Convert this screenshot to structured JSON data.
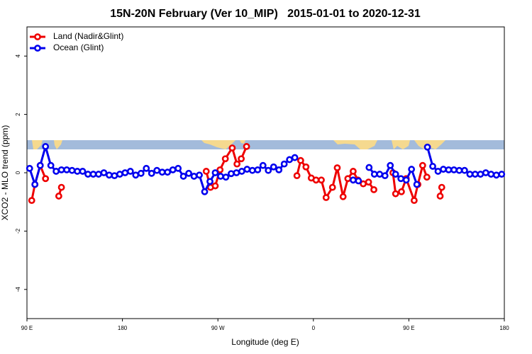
{
  "chart_data": {
    "type": "line",
    "title": "15N-20N February (Ver 10_MIP)   2015-01-01 to 2020-12-31",
    "x_label": "Longitude (deg E)",
    "y_label": "XCO2 - MLO trend (ppm)",
    "xlim": [
      90,
      540
    ],
    "xticks": [
      {
        "value": 90,
        "label": "90 E"
      },
      180,
      {
        "value": 270,
        "label": "90 W"
      },
      {
        "value": 360,
        "label": "0"
      },
      {
        "value": 450,
        "label": "90 E"
      },
      {
        "value": 540,
        "label": "180"
      }
    ],
    "ylim": [
      -5,
      5
    ],
    "yticks": [
      -4,
      -2,
      0,
      2,
      4
    ],
    "legend": "top-left",
    "series": [
      {
        "name": "Land (Nadir&Glint)",
        "color": "#ee0000",
        "x": [
          94.5,
          97.5,
          102.5,
          107.5,
          114,
          120,
          122.5,
          190,
          259,
          263,
          267.5,
          272,
          277,
          283.5,
          288,
          292,
          297,
          320,
          344.5,
          348,
          353,
          358,
          362.5,
          367.5,
          372,
          378,
          382.5,
          388,
          392.5,
          397.5,
          402,
          407,
          412,
          417,
          425,
          435,
          437.5,
          443,
          447.5,
          455,
          458.5,
          463,
          467,
          473,
          479.5,
          481
        ],
        "values": [
          -0.95,
          -0.4,
          0.25,
          -0.2,
          null,
          -0.8,
          -0.5,
          null,
          0.05,
          -0.5,
          -0.45,
          0.1,
          0.48,
          0.85,
          0.3,
          0.48,
          0.9,
          null,
          -0.1,
          0.42,
          0.2,
          -0.18,
          -0.25,
          -0.25,
          -0.85,
          -0.5,
          0.17,
          -0.82,
          -0.2,
          0.05,
          -0.25,
          -0.38,
          -0.32,
          -0.58,
          null,
          0,
          -0.72,
          -0.65,
          -0.2,
          -0.95,
          -0.4,
          0.25,
          -0.15,
          null,
          -0.8,
          -0.5
        ]
      },
      {
        "name": "Ocean (Glint)",
        "color": "#0000ee",
        "x": [
          92.5,
          97.5,
          102.5,
          107.5,
          112.5,
          117.5,
          122.5,
          127.5,
          132.5,
          137.5,
          142.5,
          147.5,
          152.5,
          157.5,
          162.5,
          167.5,
          172.5,
          177.5,
          182.5,
          187.5,
          192.5,
          197.5,
          202.5,
          207.5,
          212.5,
          217.5,
          222.5,
          227.5,
          232.5,
          237.5,
          242.5,
          247.5,
          252.5,
          257.5,
          262.5,
          267.5,
          272.5,
          277.5,
          282.5,
          287.5,
          292.5,
          297.5,
          302.5,
          307.5,
          312.5,
          317.5,
          322.5,
          327.5,
          332.5,
          337.5,
          342.5,
          347.5,
          397.5,
          402.5,
          407.5,
          412.5,
          417.5,
          422.5,
          427.5,
          432.5,
          437.5,
          442.5,
          447.5,
          452.5,
          457.5,
          462.5,
          467.5,
          472.5,
          477.5,
          482.5,
          487.5,
          492.5,
          497.5,
          502.5,
          507.5,
          512.5,
          517.5,
          522.5,
          527.5,
          532.5,
          537.5
        ],
        "values": [
          0.15,
          -0.4,
          0.25,
          0.9,
          0.25,
          0.05,
          0.1,
          0.1,
          0.08,
          0.05,
          0.05,
          -0.05,
          -0.05,
          -0.05,
          0,
          -0.08,
          -0.1,
          -0.05,
          0,
          0.05,
          -0.08,
          -0.02,
          0.15,
          -0.02,
          0.08,
          0.02,
          0.02,
          0.1,
          0.15,
          -0.12,
          -0.02,
          -0.12,
          -0.08,
          -0.65,
          -0.3,
          0,
          -0.12,
          -0.15,
          -0.03,
          0,
          0.05,
          0.12,
          0.08,
          0.1,
          0.25,
          0.08,
          0.2,
          0.1,
          0.3,
          0.45,
          0.52,
          null,
          -0.25,
          -0.28,
          null,
          0.18,
          -0.05,
          -0.05,
          -0.1,
          0.25,
          -0.05,
          -0.2,
          -0.25,
          0.12,
          -0.4,
          null,
          0.88,
          0.22,
          0.05,
          0.12,
          0.1,
          0.1,
          0.08,
          0.08,
          -0.05,
          -0.05,
          -0.05,
          0,
          -0.05,
          -0.08,
          -0.05
        ]
      }
    ]
  }
}
